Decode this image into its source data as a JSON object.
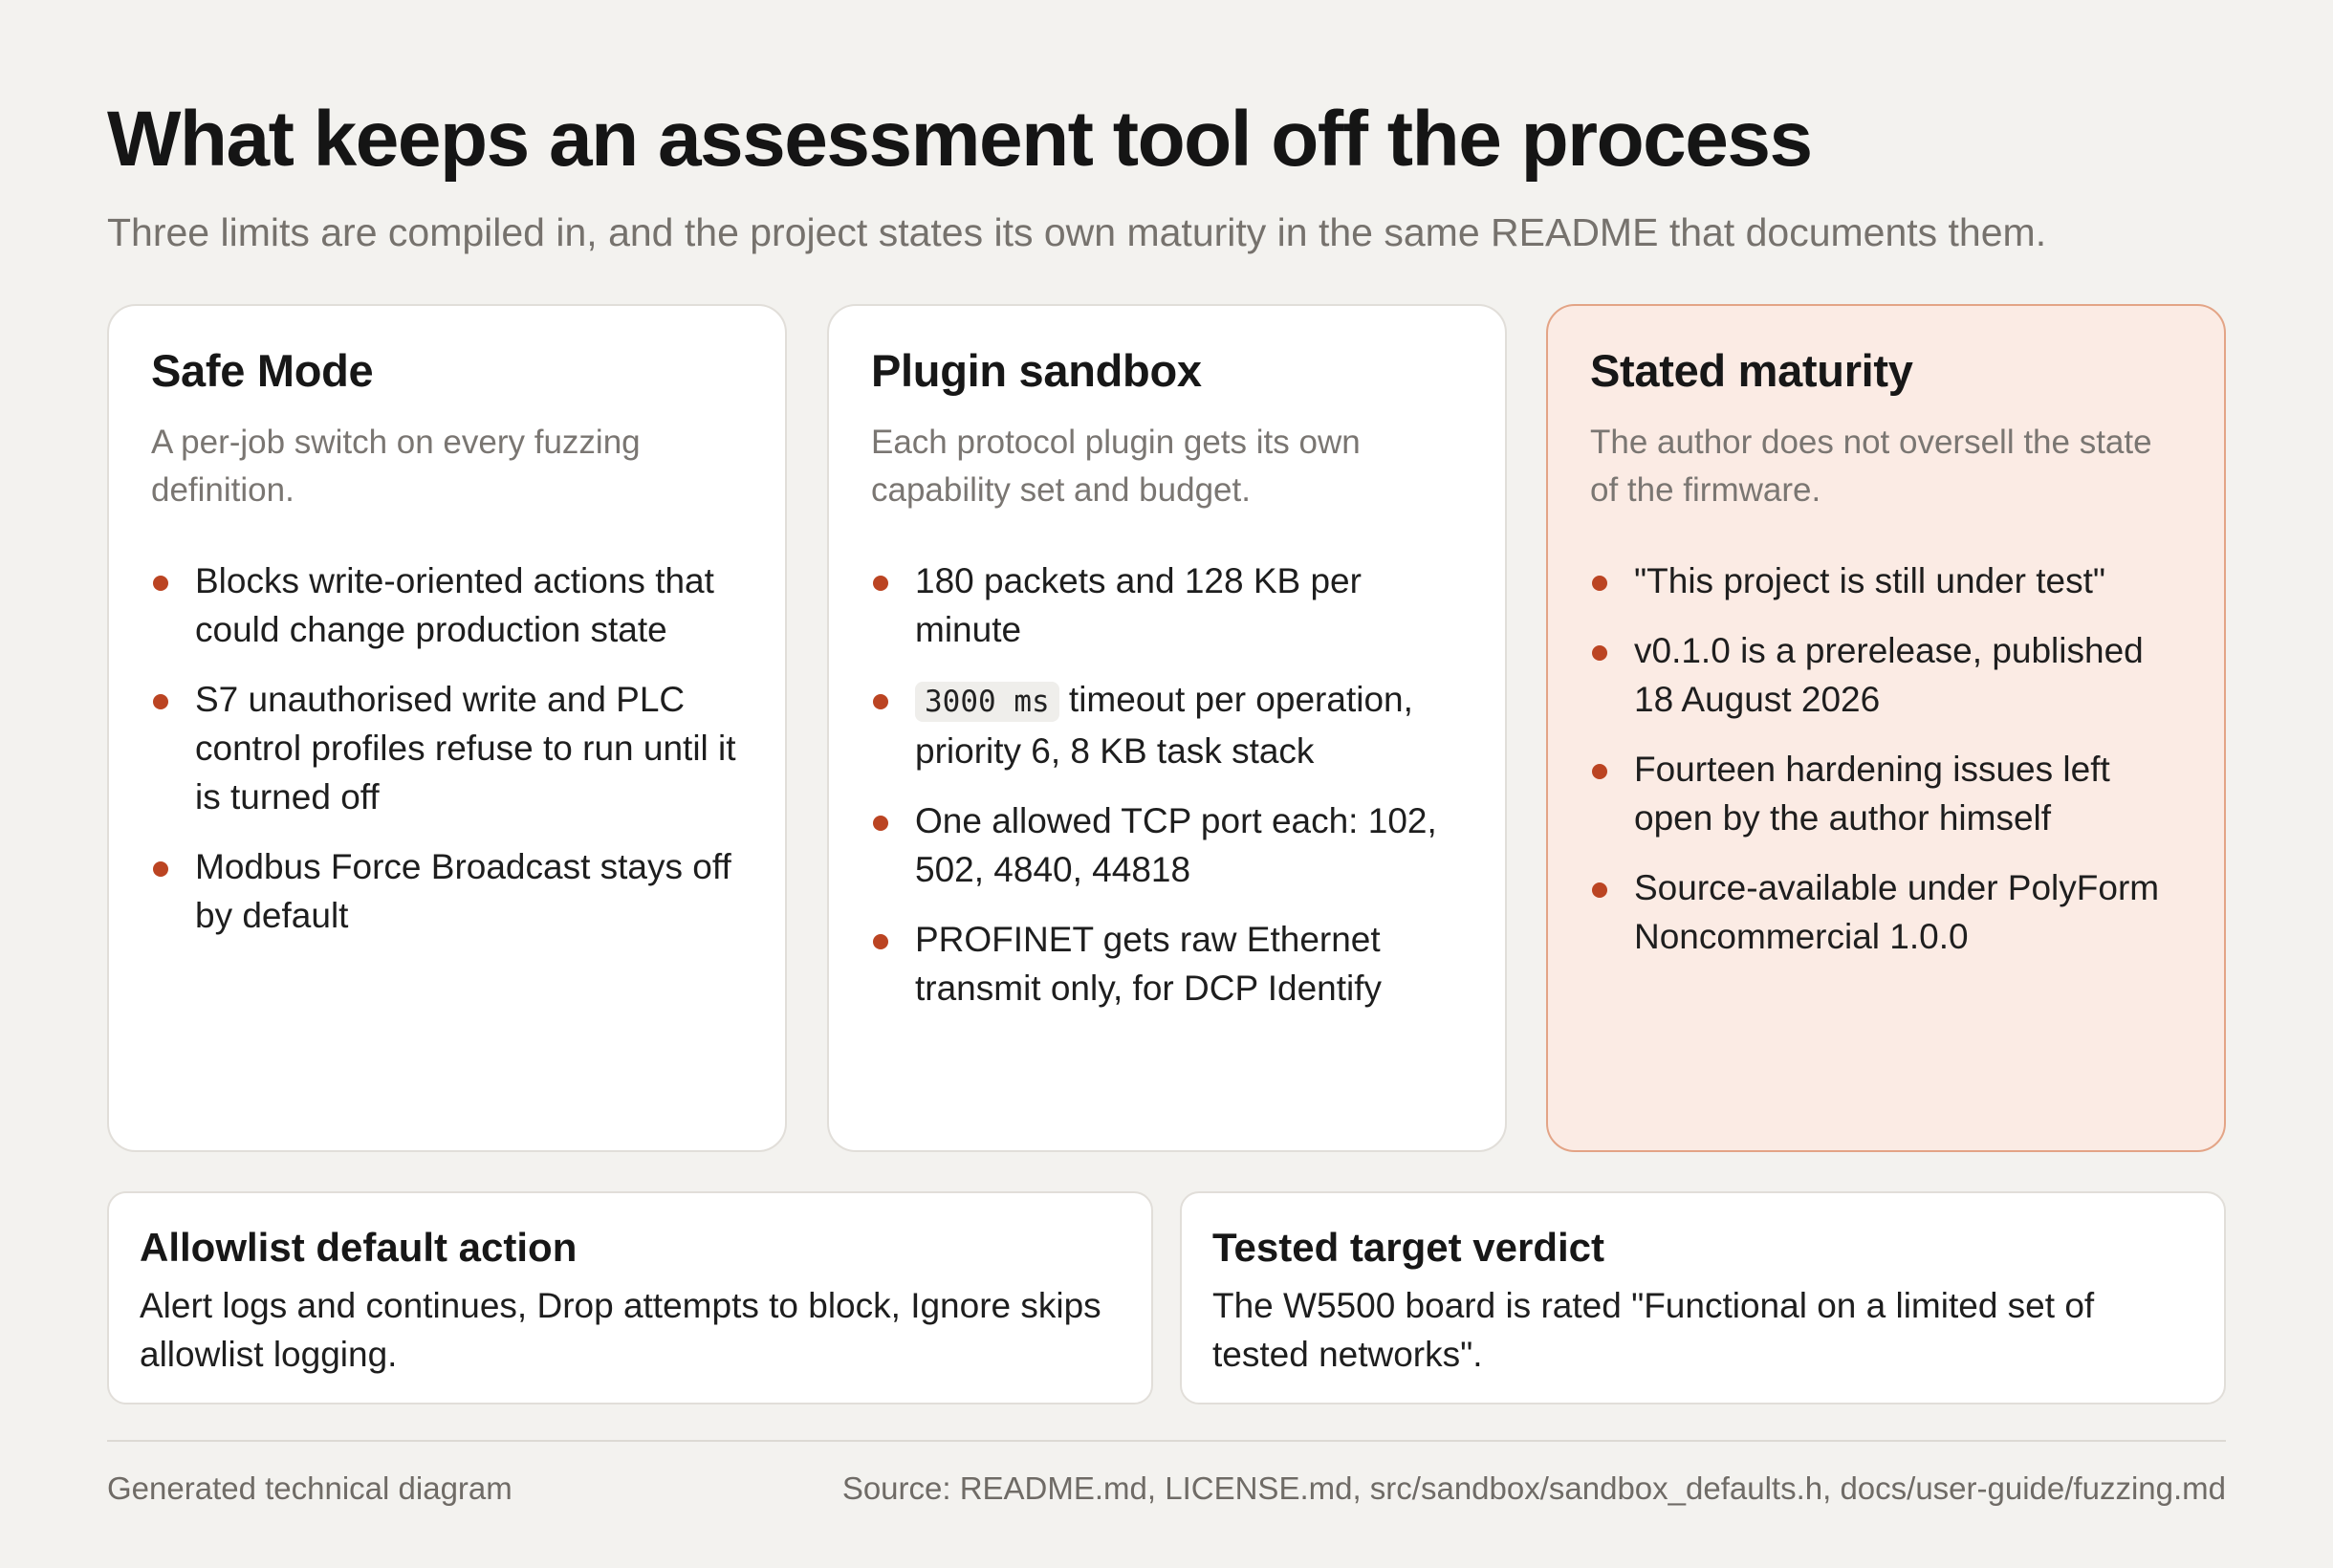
{
  "header": {
    "title": "What keeps an assessment tool off the process",
    "subtitle": "Three limits are compiled in, and the project states its own maturity in the same README that documents them."
  },
  "cards": [
    {
      "title": "Safe Mode",
      "description": "A per-job switch on every fuzzing definition.",
      "bullets": [
        "Blocks write-oriented actions that could change production state",
        "S7 unauthorised write and PLC control profiles refuse to run until it is turned off",
        "Modbus Force Broadcast stays off by default"
      ]
    },
    {
      "title": "Plugin sandbox",
      "description": "Each protocol plugin gets its own capability set and budget.",
      "bullets": [
        "180 packets and 128 KB per minute",
        {
          "code": "3000 ms",
          "text": " timeout per operation, priority 6, 8 KB task stack"
        },
        "One allowed TCP port each: 102, 502, 4840, 44818",
        "PROFINET gets raw Ethernet transmit only, for DCP Identify"
      ]
    },
    {
      "title": "Stated maturity",
      "description": "The author does not oversell the state of the firmware.",
      "bullets": [
        "\"This project is still under test\"",
        "v0.1.0 is a prerelease, published 18 August 2026",
        "Fourteen hardening issues left open by the author himself",
        "Source-available under PolyForm Noncommercial 1.0.0"
      ]
    }
  ],
  "bottom_cards": [
    {
      "title": "Allowlist default action",
      "text": "Alert logs and continues, Drop attempts to block, Ignore skips allowlist logging."
    },
    {
      "title": "Tested target verdict",
      "text": "The W5500 board is rated \"Functional on a limited set of tested networks\"."
    }
  ],
  "footer": {
    "left": "Generated technical diagram",
    "right": "Source: README.md, LICENSE.md, src/sandbox/sandbox_defaults.h, docs/user-guide/fuzzing.md"
  },
  "colors": {
    "background": "#f3f2ef",
    "accent": "#bb4422",
    "highlight_card": "#fbebe4",
    "highlight_border": "#e3a486"
  }
}
